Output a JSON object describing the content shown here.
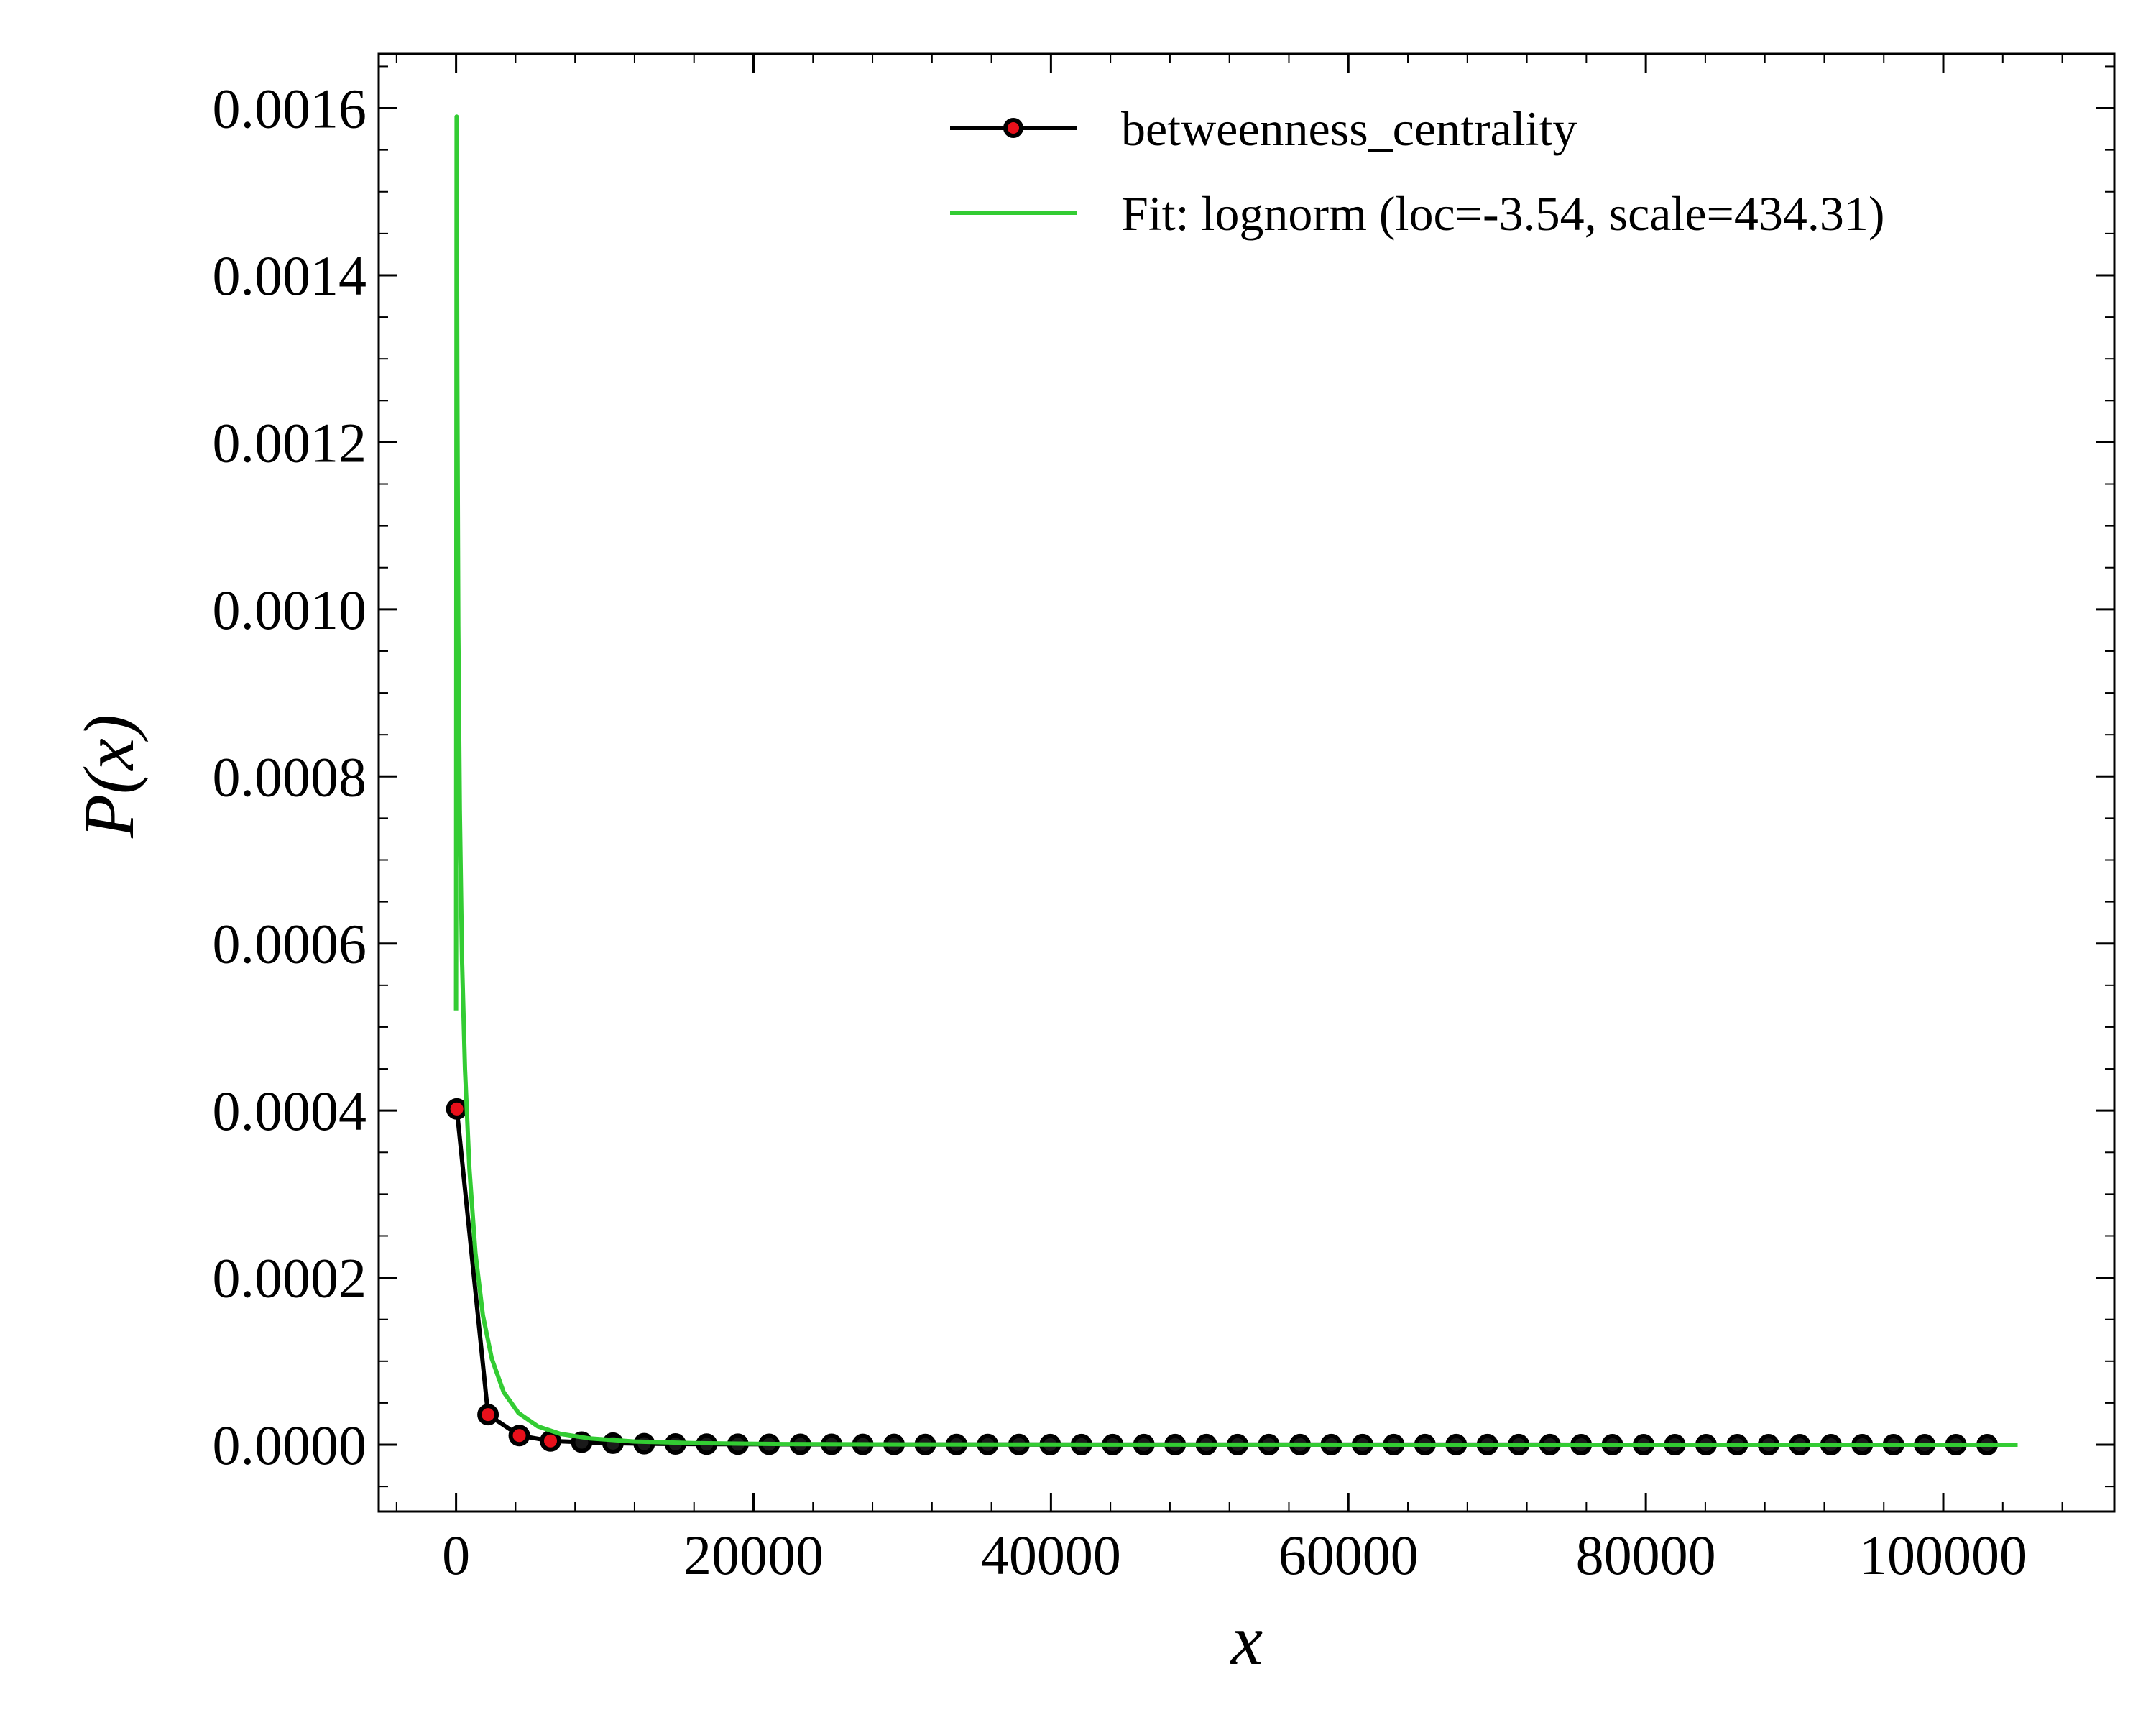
{
  "chart_data": {
    "type": "line",
    "xlabel": "x",
    "ylabel": "P(x)",
    "xlim": [
      -5200,
      111500
    ],
    "ylim": [
      -8e-05,
      0.001665
    ],
    "x_ticks": [
      0,
      20000,
      40000,
      60000,
      80000,
      100000
    ],
    "x_tick_labels": [
      "0",
      "20000",
      "40000",
      "60000",
      "80000",
      "100000"
    ],
    "y_ticks": [
      0.0,
      0.0002,
      0.0004,
      0.0006,
      0.0008,
      0.001,
      0.0012,
      0.0014,
      0.0016
    ],
    "y_tick_labels": [
      "0.0000",
      "0.0002",
      "0.0004",
      "0.0006",
      "0.0008",
      "0.0010",
      "0.0012",
      "0.0014",
      "0.0016"
    ],
    "legend_position": "top-right",
    "grid": false,
    "series": [
      {
        "name": "betweenness_centrality",
        "kind": "line-markers",
        "line_color": "#000000",
        "marker_fill_first": "#e8101b",
        "marker_fill_rest": "#1a1a1a",
        "x": [
          50,
          2150,
          4250,
          6350,
          8450,
          10550,
          12650,
          14750,
          16850,
          18950,
          21050,
          23150,
          25250,
          27350,
          29450,
          31550,
          33650,
          35750,
          37850,
          39950,
          42050,
          44150,
          46250,
          48350,
          50450,
          52550,
          54650,
          56750,
          58850,
          60950,
          63050,
          65150,
          67250,
          69350,
          71450,
          73550,
          75650,
          77750,
          79850,
          81950,
          84050,
          86150,
          88250,
          90350,
          92450,
          94550,
          96650,
          98750,
          100850,
          102950
        ],
        "y": [
          0.000402,
          3.6e-05,
          1.1e-05,
          4.5e-06,
          3e-06,
          1.8e-06,
          1.2e-06,
          9e-07,
          7e-07,
          6e-07,
          5e-07,
          4e-07,
          4e-07,
          3e-07,
          3e-07,
          2e-07,
          2e-07,
          2e-07,
          2e-07,
          1e-07,
          1e-07,
          1e-07,
          1e-07,
          1e-07,
          1e-07,
          1e-07,
          1e-07,
          1e-07,
          1e-07,
          1e-07,
          1e-07,
          1e-07,
          1e-07,
          1e-07,
          1e-07,
          1e-07,
          0.0,
          0.0,
          0.0,
          0.0,
          0.0,
          0.0,
          0.0,
          0.0,
          0.0,
          0.0,
          0.0,
          0.0,
          0.0,
          0.0
        ]
      },
      {
        "name": "Fit: lognorm (loc=-3.54, scale=434.31)",
        "kind": "line",
        "line_color": "#33cc33",
        "x": [
          0,
          40,
          80,
          150,
          250,
          400,
          600,
          900,
          1300,
          1800,
          2400,
          3200,
          4200,
          5500,
          7000,
          9000,
          12000,
          16000,
          22000,
          30000,
          40000,
          55000,
          70000,
          85000,
          100000,
          105000
        ],
        "y": [
          0.00052,
          0.00159,
          0.00128,
          0.00098,
          0.00076,
          0.00058,
          0.00045,
          0.00033,
          0.00023,
          0.000155,
          0.000103,
          6.3e-05,
          3.8e-05,
          2.2e-05,
          1.3e-05,
          7.5e-06,
          3.8e-06,
          1.9e-06,
          8e-07,
          4e-07,
          2e-07,
          1e-07,
          5e-08,
          3e-08,
          2e-08,
          1e-08
        ]
      }
    ]
  }
}
